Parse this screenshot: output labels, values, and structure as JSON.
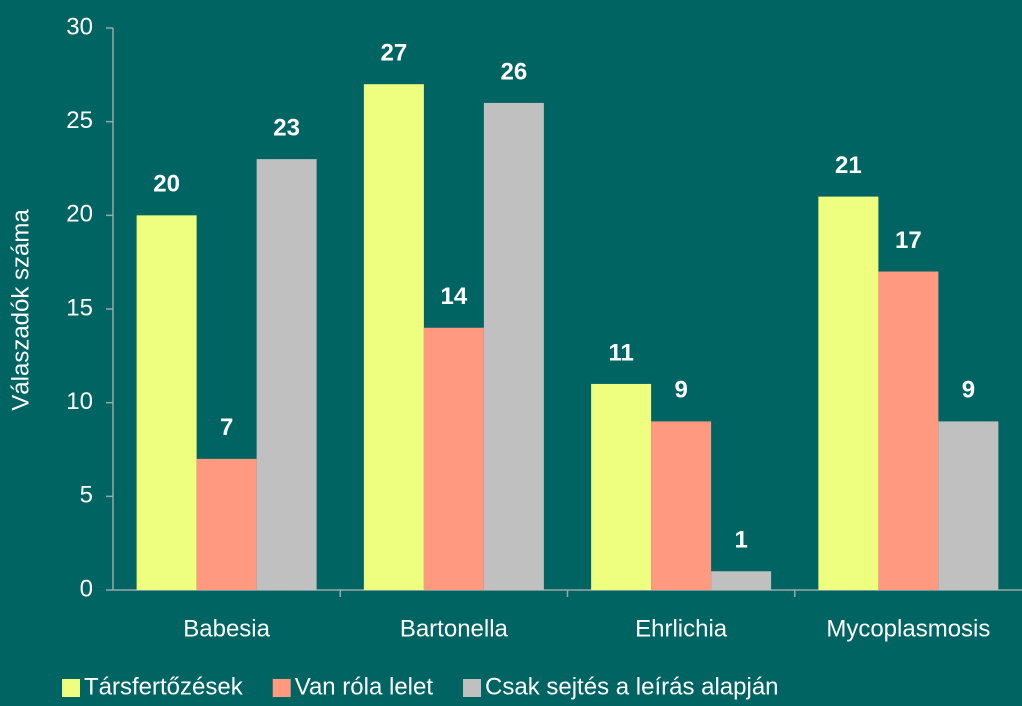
{
  "chart_data": {
    "type": "bar",
    "y_label": "Válaszadók száma",
    "categories": [
      "Babesia",
      "Bartonella",
      "Ehrlichia",
      "Mycoplasmosis"
    ],
    "series": [
      {
        "name": "Társfertőzések",
        "color": "#eeff80",
        "values": [
          20,
          27,
          11,
          21
        ]
      },
      {
        "name": "Van róla lelet",
        "color": "#ff9980",
        "values": [
          7,
          14,
          9,
          17
        ]
      },
      {
        "name": "Csak sejtés a leírás alapján",
        "color": "#c0c0c0",
        "values": [
          23,
          26,
          1,
          9
        ]
      }
    ],
    "ylim": [
      0,
      30
    ],
    "yticks": [
      0,
      5,
      10,
      15,
      20,
      25,
      30
    ],
    "grid": false,
    "legend": "bottom"
  }
}
